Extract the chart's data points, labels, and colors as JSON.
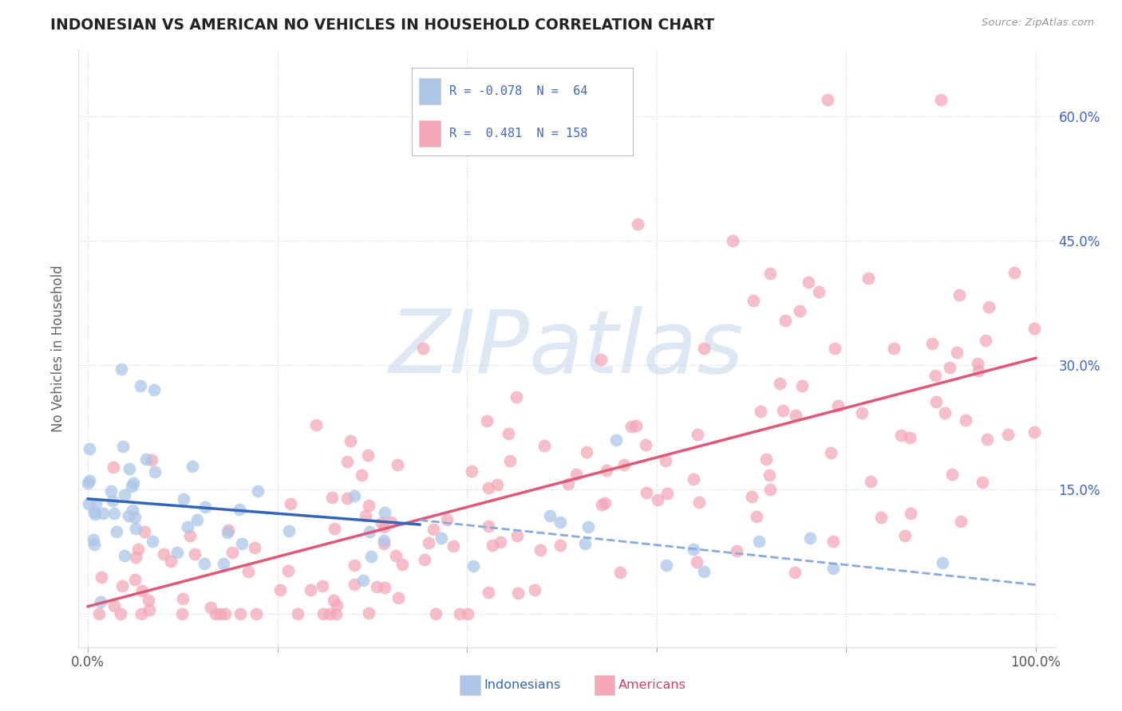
{
  "title": "INDONESIAN VS AMERICAN NO VEHICLES IN HOUSEHOLD CORRELATION CHART",
  "source": "Source: ZipAtlas.com",
  "ylabel": "No Vehicles in Household",
  "watermark": "ZIPatlas",
  "indonesian_color": "#adc6e8",
  "american_color": "#f4a8b8",
  "indonesian_line_color": "#3366bb",
  "american_line_color": "#e05878",
  "indonesian_dash_color": "#88aadd",
  "background_color": "#ffffff",
  "grid_color": "#cccccc",
  "title_color": "#222222",
  "watermark_color": "#c8d8ee",
  "legend_text_color": "#4466bb",
  "right_tick_color": "#4466bb",
  "bottom_tick_color": "#555555",
  "indo_seed": 12,
  "amer_seed": 77
}
